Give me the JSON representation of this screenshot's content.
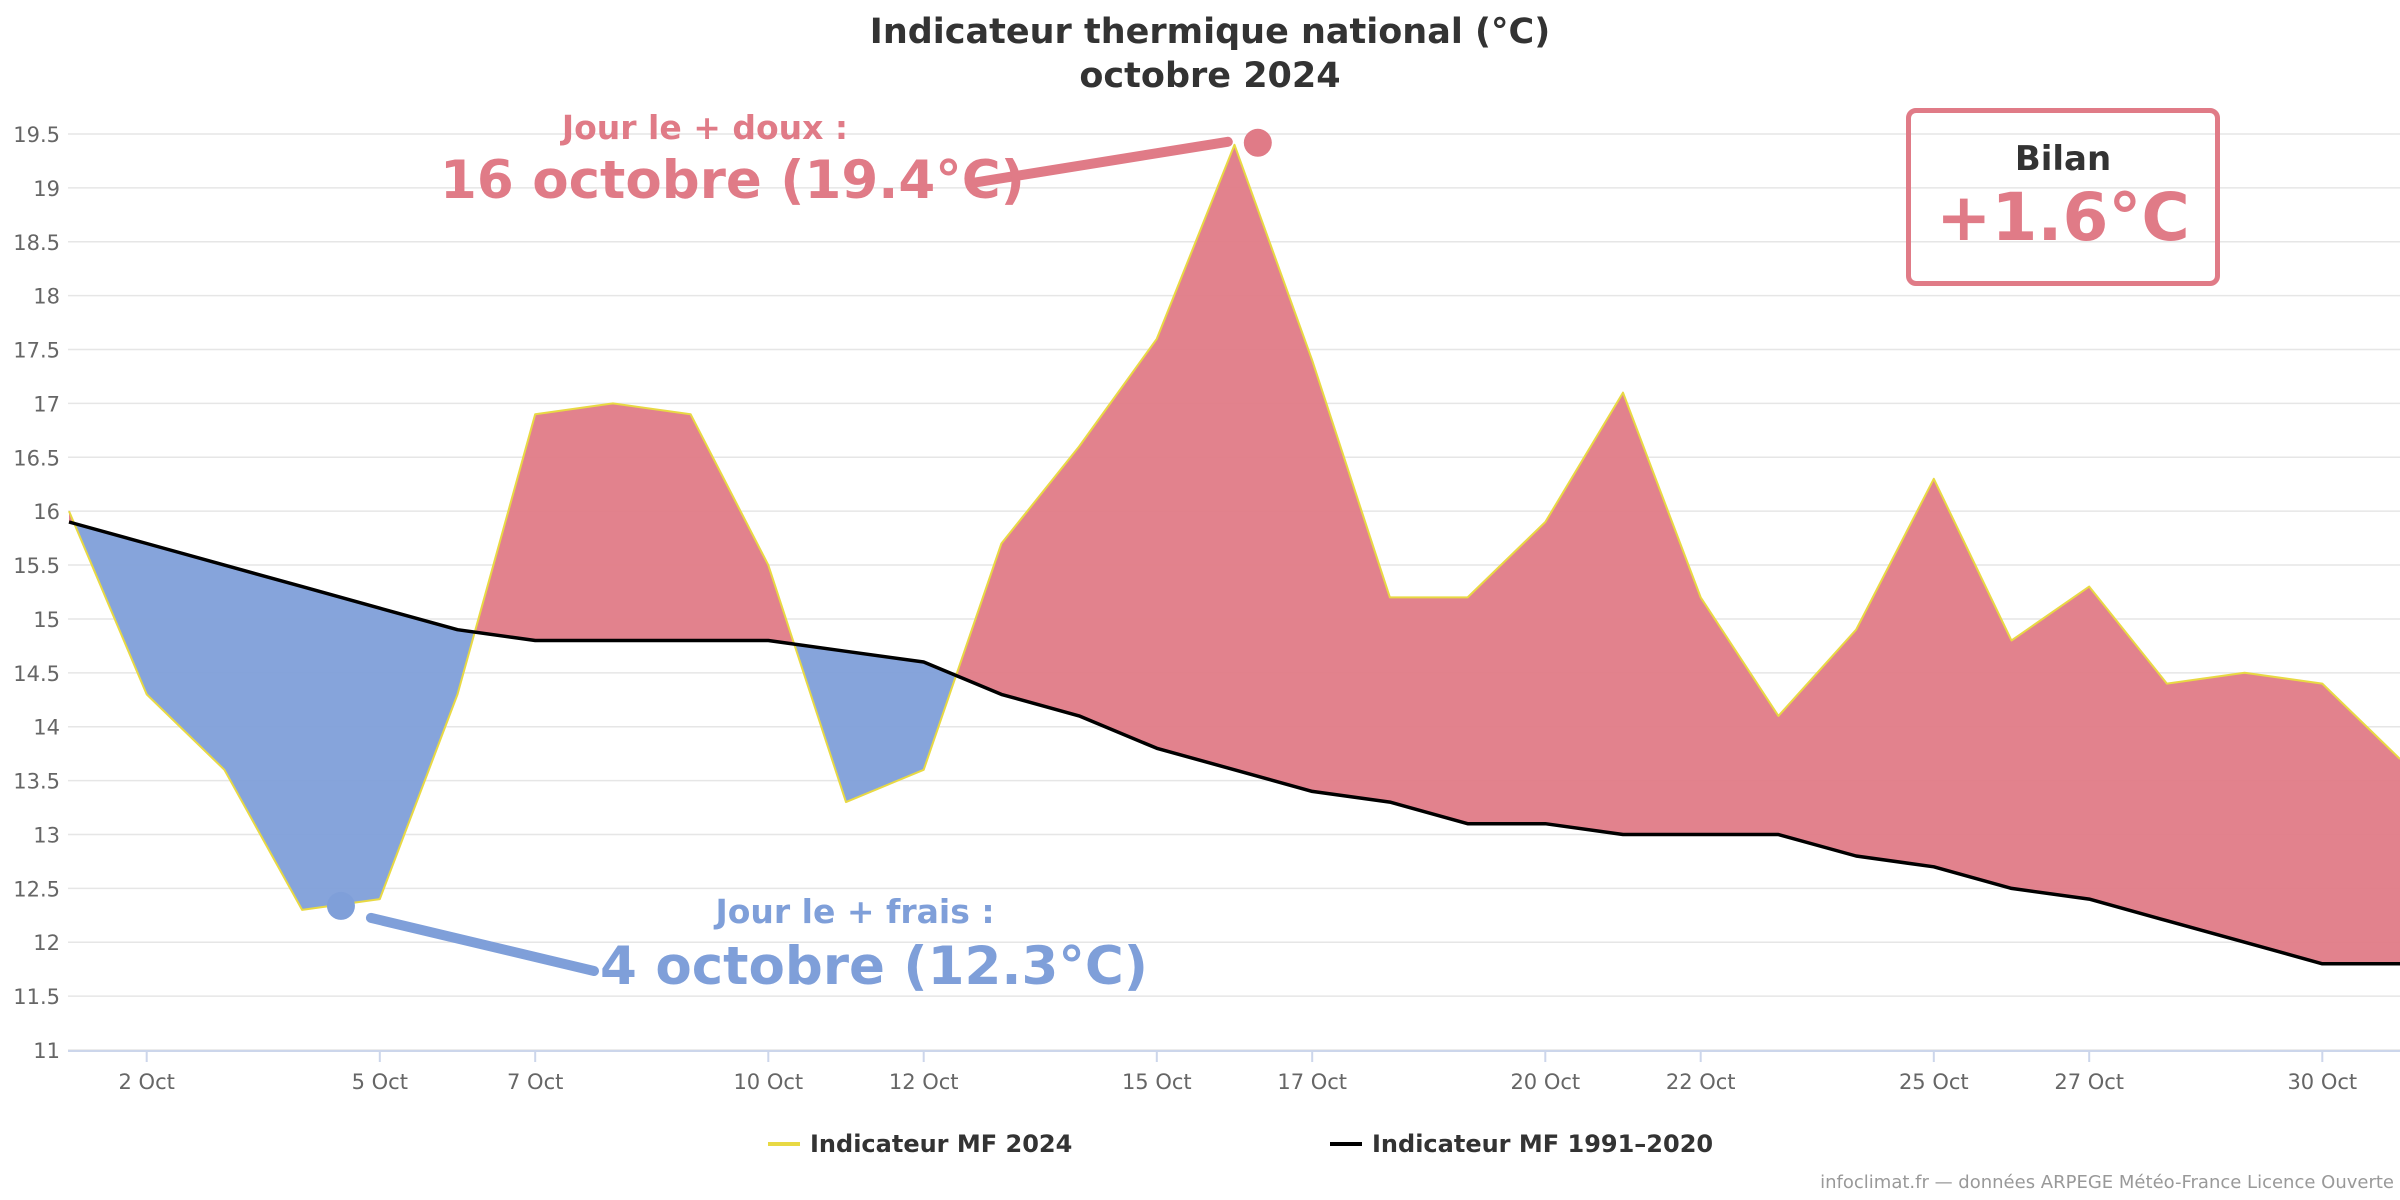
{
  "chart_data": {
    "type": "area",
    "title": "Indicateur thermique national (°C)",
    "subtitle": "octobre 2024",
    "xlabel": "",
    "ylabel": "",
    "ylim": [
      11,
      19.5
    ],
    "yticks": [
      11,
      11.5,
      12,
      12.5,
      13,
      13.5,
      14,
      14.5,
      15,
      15.5,
      16,
      16.5,
      17,
      17.5,
      18,
      18.5,
      19,
      19.5
    ],
    "x_tick_labels": [
      {
        "day": 2,
        "label": "2 Oct"
      },
      {
        "day": 5,
        "label": "5 Oct"
      },
      {
        "day": 7,
        "label": "7 Oct"
      },
      {
        "day": 10,
        "label": "10 Oct"
      },
      {
        "day": 12,
        "label": "12 Oct"
      },
      {
        "day": 15,
        "label": "15 Oct"
      },
      {
        "day": 17,
        "label": "17 Oct"
      },
      {
        "day": 20,
        "label": "20 Oct"
      },
      {
        "day": 22,
        "label": "22 Oct"
      },
      {
        "day": 25,
        "label": "25 Oct"
      },
      {
        "day": 27,
        "label": "27 Oct"
      },
      {
        "day": 30,
        "label": "30 Oct"
      }
    ],
    "x": [
      1,
      2,
      3,
      4,
      5,
      6,
      7,
      8,
      9,
      10,
      11,
      12,
      13,
      14,
      15,
      16,
      17,
      18,
      19,
      20,
      21,
      22,
      23,
      24,
      25,
      26,
      27,
      28,
      29,
      30,
      31
    ],
    "series": [
      {
        "name": "Indicateur MF 2024",
        "color": "#e8d944",
        "values": [
          16.0,
          14.3,
          13.6,
          12.3,
          12.4,
          14.3,
          16.9,
          17.0,
          16.9,
          15.5,
          13.3,
          13.6,
          15.7,
          16.6,
          17.6,
          19.4,
          17.4,
          15.2,
          15.2,
          15.9,
          17.1,
          15.2,
          14.1,
          14.9,
          16.3,
          14.8,
          15.3,
          14.4,
          14.5,
          14.4,
          13.7
        ]
      },
      {
        "name": "Indicateur MF 1991-2020",
        "color": "#000000",
        "values": [
          15.9,
          15.7,
          15.5,
          15.3,
          15.1,
          14.9,
          14.8,
          14.8,
          14.8,
          14.8,
          14.7,
          14.6,
          14.3,
          14.1,
          13.8,
          13.6,
          13.4,
          13.3,
          13.1,
          13.1,
          13.0,
          13.0,
          13.0,
          12.8,
          12.7,
          12.5,
          12.4,
          12.2,
          12.0,
          11.8,
          11.8
        ]
      }
    ],
    "fill_above_color": "#e07b87",
    "fill_below_color": "#7f9fd9",
    "grid": true,
    "legend_position": "bottom",
    "annotations": {
      "warmest": {
        "label": "Jour le + doux :",
        "value_text": "16 octobre (19.4°C)",
        "day": 16,
        "temp": 19.4
      },
      "coolest": {
        "label": "Jour le + frais :",
        "value_text": "4 octobre (12.3°C)",
        "day": 4,
        "temp": 12.3
      }
    },
    "summary": {
      "label": "Bilan",
      "value": "+1.6°C"
    }
  },
  "legend": {
    "item_2024": "Indicateur MF 2024",
    "item_ref": "Indicateur MF 1991–2020"
  },
  "credit": "infoclimat.fr — données ARPEGE Météo-France Licence Ouverte"
}
